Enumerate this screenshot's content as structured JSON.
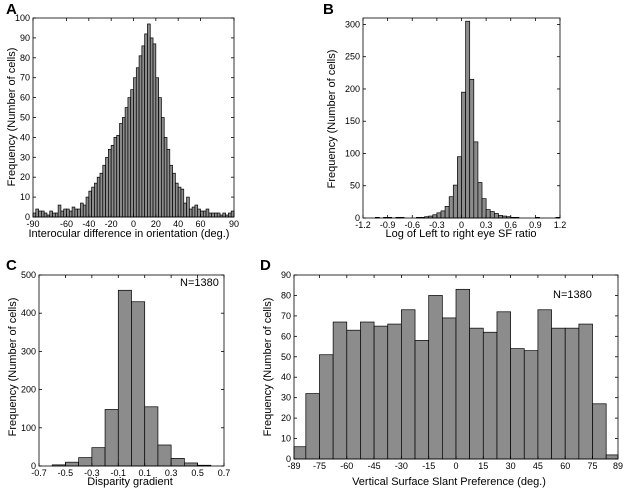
{
  "figure": {
    "panels": [
      "A",
      "B",
      "C",
      "D"
    ]
  },
  "chart_data": [
    {
      "id": "A",
      "type": "bar",
      "panel_label": "A",
      "title": "",
      "xlabel": "Interocular difference in orientation (deg.)",
      "ylabel": "Frequency (Number of cells)",
      "xlim": [
        -90,
        90
      ],
      "ylim": [
        0,
        100
      ],
      "xticks": [
        -90,
        -60,
        -40,
        -20,
        0,
        20,
        40,
        60,
        90
      ],
      "yticks": [
        0,
        10,
        20,
        30,
        40,
        50,
        60,
        70,
        80,
        90,
        100
      ],
      "bin_start": -90,
      "bin_width": 2.5,
      "values": [
        2,
        4,
        3,
        3,
        2,
        1,
        3,
        2,
        2,
        6,
        3,
        4,
        4,
        3,
        5,
        4,
        4,
        7,
        6,
        10,
        13,
        15,
        17,
        20,
        22,
        26,
        30,
        34,
        36,
        40,
        41,
        47,
        50,
        55,
        60,
        64,
        70,
        75,
        81,
        86,
        92,
        97,
        90,
        87,
        70,
        60,
        50,
        40,
        34,
        26,
        22,
        17,
        15,
        14,
        7,
        10,
        4,
        5,
        6,
        4,
        3,
        3,
        4,
        2,
        2,
        2,
        2,
        1,
        2,
        1,
        2,
        3
      ],
      "annotation": ""
    },
    {
      "id": "B",
      "type": "bar",
      "panel_label": "B",
      "title": "",
      "xlabel": "Log of Left to right eye SF ratio",
      "ylabel": "Frequency (Number of cells)",
      "xlim": [
        -1.2,
        1.2
      ],
      "ylim": [
        0,
        310
      ],
      "xticks": [
        -1.2,
        -0.9,
        -0.6,
        -0.3,
        0,
        0.3,
        0.6,
        0.9,
        1.2
      ],
      "yticks": [
        0,
        50,
        100,
        150,
        200,
        250,
        300
      ],
      "bin_start": -1.2,
      "bin_width": 0.05,
      "values": [
        0,
        0,
        0,
        1,
        0,
        1,
        1,
        0,
        1,
        1,
        0,
        0,
        0,
        1,
        1,
        2,
        3,
        5,
        8,
        11,
        18,
        33,
        51,
        95,
        195,
        305,
        215,
        118,
        55,
        30,
        13,
        10,
        7,
        4,
        3,
        2,
        1,
        1,
        0,
        0,
        0,
        0,
        1,
        0,
        0,
        0,
        0,
        1
      ],
      "annotation": ""
    },
    {
      "id": "C",
      "type": "bar",
      "panel_label": "C",
      "title": "",
      "xlabel": "Disparity gradient",
      "ylabel": "Frequency (Number of cells)",
      "xlim": [
        -0.7,
        0.7
      ],
      "ylim": [
        0,
        500
      ],
      "xticks": [
        -0.7,
        -0.5,
        -0.3,
        -0.1,
        0.1,
        0.3,
        0.5,
        0.7
      ],
      "yticks": [
        0,
        100,
        200,
        300,
        400,
        500
      ],
      "bin_start": -0.6,
      "bin_width": 0.1,
      "values": [
        3,
        10,
        22,
        48,
        148,
        460,
        430,
        155,
        55,
        20,
        8,
        2
      ],
      "annotation": "N=1380"
    },
    {
      "id": "D",
      "type": "bar",
      "panel_label": "D",
      "title": "",
      "xlabel": "Vertical Surface Slant Preference (deg.)",
      "ylabel": "Frequency (Number of cells)",
      "xlim": [
        -89,
        89
      ],
      "ylim": [
        0,
        90
      ],
      "xticks": [
        -89,
        -75,
        -60,
        -45,
        -30,
        -15,
        0,
        15,
        30,
        45,
        60,
        75,
        89
      ],
      "yticks": [
        0,
        10,
        20,
        30,
        40,
        50,
        60,
        70,
        80,
        90
      ],
      "bin_edges": [
        -89,
        -82.5,
        -75,
        -67.5,
        -60,
        -52.5,
        -45,
        -37.5,
        -30,
        -22.5,
        -15,
        -7.5,
        0,
        7.5,
        15,
        22.5,
        30,
        37.5,
        45,
        52.5,
        60,
        67.5,
        75,
        82.5,
        89
      ],
      "values": [
        6,
        32,
        51,
        67,
        63,
        67,
        65,
        66,
        73,
        58,
        80,
        69,
        83,
        64,
        62,
        72,
        54,
        53,
        73,
        64,
        64,
        66,
        27,
        2
      ],
      "annotation": "N=1380"
    }
  ]
}
